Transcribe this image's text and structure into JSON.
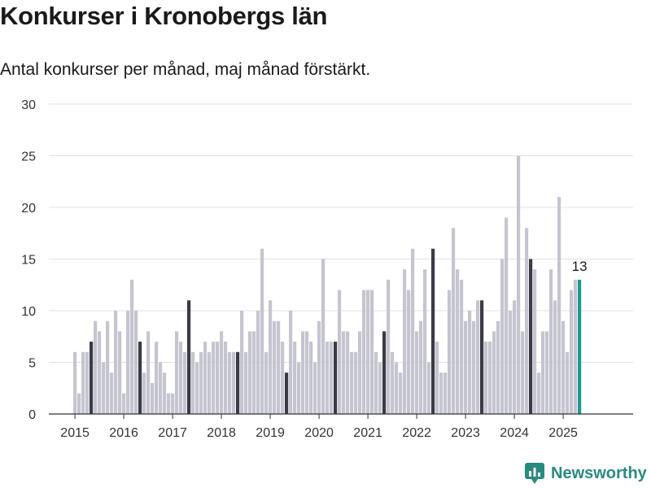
{
  "page": {
    "title": "Konkurser i Kronobergs län",
    "subtitle": "Antal konkurser per månad, maj månad förstärkt."
  },
  "brand": {
    "name": "Newsworthy",
    "icon": "newsworthy-logo-icon",
    "color": "#2a8a7e"
  },
  "chart_data": {
    "type": "bar",
    "title": "Konkurser i Kronobergs län",
    "subtitle": "Antal konkurser per månad, maj månad förstärkt.",
    "xlabel": "",
    "ylabel": "",
    "ylim": [
      0,
      30
    ],
    "yticks": [
      0,
      5,
      10,
      15,
      20,
      25,
      30
    ],
    "xtick_labels": [
      "2015",
      "2016",
      "2017",
      "2018",
      "2019",
      "2020",
      "2021",
      "2022",
      "2023",
      "2024",
      "2025"
    ],
    "grid": true,
    "start_month": "2015-01",
    "end_month": "2025-05",
    "highlight_month": "maj",
    "colors": {
      "default": "#c5c5d0",
      "may": "#3b3b47",
      "latest": "#1a9a8f",
      "grid": "#e2e2e2",
      "text": "#333333"
    },
    "latest_label": "13",
    "series": [
      {
        "values": [
          6,
          2,
          6,
          6,
          7,
          9,
          8,
          5,
          9,
          4,
          10,
          8,
          2,
          10,
          13,
          10,
          7,
          4,
          8,
          3,
          7,
          5,
          4,
          2,
          2,
          8,
          7,
          6,
          11,
          6,
          5,
          6,
          7,
          6,
          7,
          7,
          8,
          7,
          6,
          6,
          6,
          10,
          6,
          8,
          8,
          10,
          16,
          6,
          11,
          9,
          9,
          7,
          4,
          10,
          7,
          5,
          8,
          8,
          7,
          5,
          9,
          15,
          7,
          7,
          7,
          12,
          8,
          8,
          6,
          6,
          8,
          12,
          12,
          12,
          6,
          5,
          8,
          13,
          6,
          5,
          4,
          14,
          12,
          16,
          8,
          9,
          14,
          5,
          16,
          7,
          4,
          4,
          12,
          18,
          14,
          13,
          9,
          10,
          9,
          11,
          11,
          7,
          7,
          8,
          9,
          15,
          19,
          10,
          11,
          25,
          8,
          18,
          15,
          14,
          4,
          8,
          8,
          14,
          11,
          21,
          9,
          6,
          12,
          13,
          13
        ]
      }
    ]
  }
}
